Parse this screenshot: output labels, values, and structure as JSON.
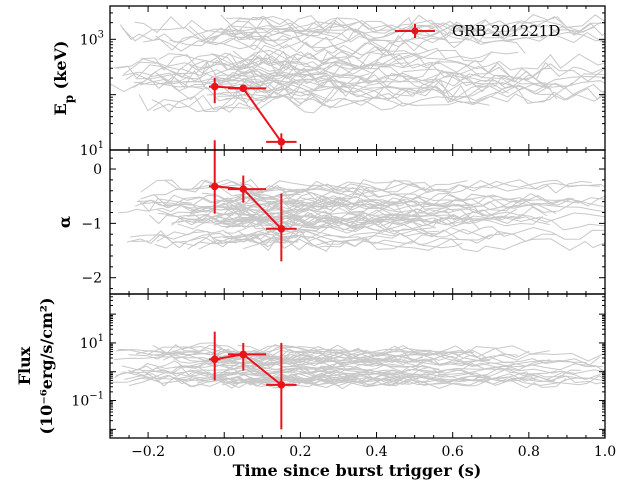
{
  "chart_data": {
    "type": "line",
    "shared_x": {
      "label": "Time since burst trigger (s)",
      "range": [
        -0.3,
        1.0
      ],
      "ticks": [
        -0.2,
        0.0,
        0.2,
        0.4,
        0.6,
        0.8,
        1.0
      ],
      "tick_labels": [
        "−0.2",
        "0.0",
        "0.2",
        "0.4",
        "0.6",
        "0.8",
        "1.0"
      ]
    },
    "legend": {
      "label": "GRB 201221D",
      "position": "top-right"
    },
    "colors": {
      "highlight": "#e8141c",
      "background_lines": "#c8c8c8",
      "axes": "#000000"
    },
    "panels": [
      {
        "id": "ep",
        "ylabel_main": "E",
        "ylabel_sub": "p",
        "ylabel_unit": " (keV)",
        "yscale": "log",
        "yrange": [
          10,
          4000
        ],
        "major_ticks": [
          {
            "value": 10,
            "base": "10",
            "exp": "1"
          },
          {
            "value": 1000,
            "base": "10",
            "exp": "3"
          }
        ],
        "highlight": {
          "name": "GRB 201221D",
          "x": [
            -0.025,
            0.05,
            0.15
          ],
          "y": [
            140,
            130,
            14
          ],
          "x_err": [
            [
              0.015,
              0.015
            ],
            [
              0.04,
              0.06
            ],
            [
              0.04,
              0.04
            ]
          ],
          "y_err": [
            [
              70,
              60
            ],
            [
              0,
              0
            ],
            [
              6,
              6
            ]
          ]
        }
      },
      {
        "id": "alpha",
        "ylabel": "α",
        "yscale": "linear",
        "yrange": [
          -2.3,
          0.35
        ],
        "ticks": [
          -2,
          -1,
          0
        ],
        "tick_labels": [
          "−2",
          "−1",
          "0"
        ],
        "highlight": {
          "name": "GRB 201221D",
          "x": [
            -0.025,
            0.05,
            0.15
          ],
          "y": [
            -0.32,
            -0.37,
            -1.1
          ],
          "x_err": [
            [
              0.015,
              0.015
            ],
            [
              0.04,
              0.06
            ],
            [
              0.04,
              0.04
            ]
          ],
          "y_err": [
            [
              0.5,
              0.85
            ],
            [
              0.25,
              0.25
            ],
            [
              0.6,
              0.65
            ]
          ]
        }
      },
      {
        "id": "flux",
        "ylabel_line1": "Flux",
        "ylabel_line2": "(10⁻⁶erg/s/cm²)",
        "yscale": "log",
        "yrange": [
          0.005,
          500
        ],
        "major_ticks": [
          {
            "value": 0.1,
            "base": "10",
            "exp": "−1"
          },
          {
            "value": 10,
            "base": "10",
            "exp": "1"
          }
        ],
        "highlight": {
          "name": "GRB 201221D",
          "x": [
            -0.025,
            0.05,
            0.15
          ],
          "y": [
            2.7,
            4.0,
            0.35
          ],
          "x_err": [
            [
              0.015,
              0.015
            ],
            [
              0.04,
              0.06
            ],
            [
              0.04,
              0.04
            ]
          ],
          "y_err": [
            [
              2.2,
              22
            ],
            [
              2.9,
              6.0
            ],
            [
              0.34,
              9.65
            ]
          ]
        }
      }
    ]
  }
}
